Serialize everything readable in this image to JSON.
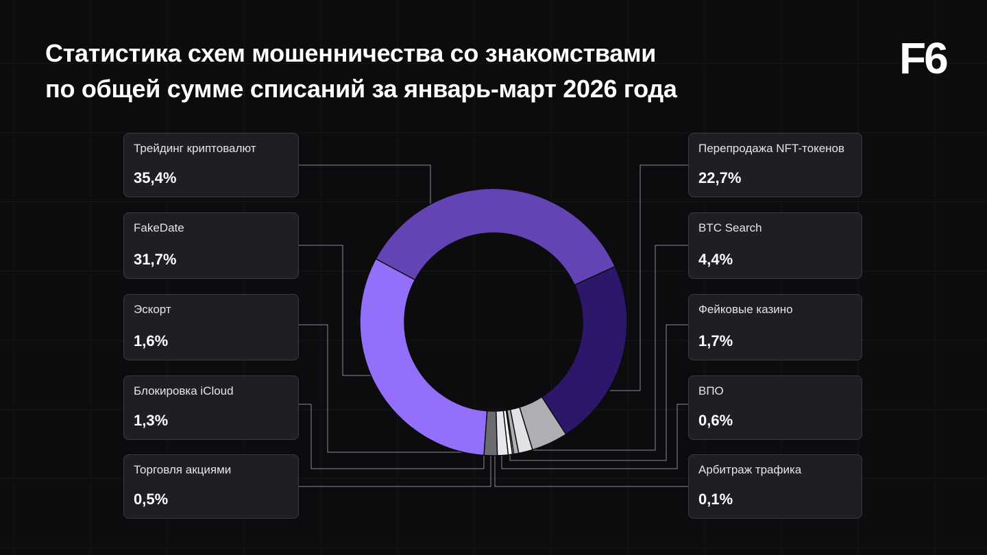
{
  "title_line1": "Статистика схем мошенничества со знакомствами",
  "title_line2": "по общей сумме списаний за январь-март 2026 года",
  "logo": "F6",
  "chart_data": {
    "type": "pie",
    "variant": "donut",
    "title": "Статистика схем мошенничества со знакомствами по общей сумме списаний за январь-март 2026 года",
    "series": [
      {
        "name": "Трейдинг криптовалют",
        "value": 35.4,
        "label": "35,4%",
        "color": "#6443b5"
      },
      {
        "name": "Перепродажа NFT-токенов",
        "value": 22.7,
        "label": "22,7%",
        "color": "#2c176a"
      },
      {
        "name": "BTC Search",
        "value": 4.4,
        "label": "4,4%",
        "color": "#aeafb3"
      },
      {
        "name": "Фейковые казино",
        "value": 1.7,
        "label": "1,7%",
        "color": "#e2e2e4"
      },
      {
        "name": "ВПО",
        "value": 0.6,
        "label": "0,6%",
        "color": "#aeafb3"
      },
      {
        "name": "Арбитраж трафика",
        "value": 0.1,
        "label": "0,1%",
        "color": "#ffffff"
      },
      {
        "name": "Торговля акциями",
        "value": 0.5,
        "label": "0,5%",
        "color": "#ffffff"
      },
      {
        "name": "Блокировка iCloud",
        "value": 1.3,
        "label": "1,3%",
        "color": "#e8e8ea"
      },
      {
        "name": "Эскорт",
        "value": 1.6,
        "label": "1,6%",
        "color": "#6b6c70"
      },
      {
        "name": "FakeDate",
        "value": 31.7,
        "label": "31,7%",
        "color": "#9470fa"
      }
    ]
  }
}
